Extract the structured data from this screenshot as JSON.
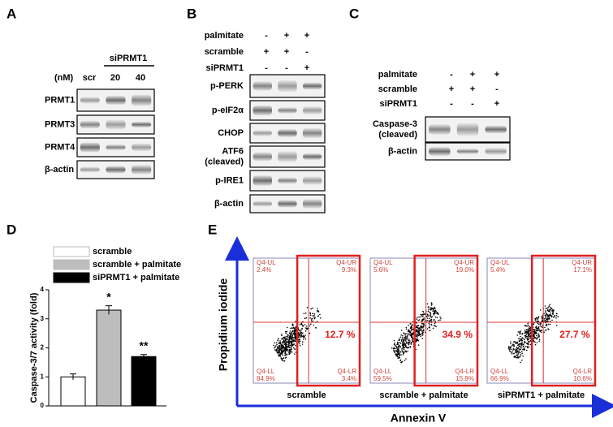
{
  "panels": {
    "A": {
      "letter": "A",
      "units": "(nM)",
      "group": "siPRMT1",
      "lanes": [
        "scr",
        "20",
        "40"
      ],
      "rows": [
        "PRMT1",
        "PRMT3",
        "PRMT4",
        "β-actin"
      ]
    },
    "B": {
      "letter": "B",
      "conditions": [
        {
          "name": "palmitate",
          "signs": [
            "-",
            "+",
            "+"
          ]
        },
        {
          "name": "scramble",
          "signs": [
            "+",
            "+",
            "-"
          ]
        },
        {
          "name": "siPRMT1",
          "signs": [
            "-",
            "-",
            "+"
          ]
        }
      ],
      "rows": [
        [
          "p-PERK"
        ],
        [
          "p-eIF2α"
        ],
        [
          "CHOP"
        ],
        [
          "ATF6",
          "(cleaved)"
        ],
        [
          "p-IRE1"
        ],
        [
          "β-actin"
        ]
      ]
    },
    "C": {
      "letter": "C",
      "conditions": [
        {
          "name": "palmitate",
          "signs": [
            "-",
            "+",
            "+"
          ]
        },
        {
          "name": "scramble",
          "signs": [
            "+",
            "+",
            "-"
          ]
        },
        {
          "name": "siPRMT1",
          "signs": [
            "-",
            "-",
            "+"
          ]
        }
      ],
      "rows": [
        [
          "Caspase-3",
          "(cleaved)"
        ],
        [
          "β-actin"
        ]
      ]
    },
    "E": {
      "letter": "E",
      "y_label": "Propidium iodide",
      "x_label": "Annexin V",
      "plots": [
        {
          "name": "scramble",
          "ul": [
            "Q4-UL",
            "2.4%"
          ],
          "ur": [
            "Q4-UR",
            "9.3%"
          ],
          "ll": [
            "Q4-LL",
            "84.9%"
          ],
          "lr": [
            "Q4-LR",
            "3.4%"
          ],
          "highlight": "12.7 %"
        },
        {
          "name": "scramble + palmitate",
          "ul": [
            "Q4-UL",
            "5.6%"
          ],
          "ur": [
            "Q4-UR",
            "19.0%"
          ],
          "ll": [
            "Q4-LL",
            "59.5%"
          ],
          "lr": [
            "Q4-LR",
            "15.9%"
          ],
          "highlight": "34.9 %"
        },
        {
          "name": "siPRMT1 + palmitate",
          "ul": [
            "Q4-UL",
            "5.4%"
          ],
          "ur": [
            "Q4-UR",
            "17.1%"
          ],
          "ll": [
            "Q4-LL",
            "66.9%"
          ],
          "lr": [
            "Q4-LR",
            "10.6%"
          ],
          "highlight": "27.7 %"
        }
      ]
    }
  },
  "chart_data": {
    "type": "bar",
    "panel": "D",
    "y_label": "Caspase-3/7 activity (fold)",
    "ylim": [
      0,
      4
    ],
    "yticks": [
      0,
      1,
      2,
      3,
      4
    ],
    "series": [
      {
        "name": "scramble",
        "color": "#ffffff",
        "values": [
          1.0
        ],
        "errors": [
          0.1
        ]
      },
      {
        "name": "scramble + palmitate",
        "color": "#bdbdbd",
        "values": [
          3.3
        ],
        "errors": [
          0.15
        ],
        "significance": "*"
      },
      {
        "name": "siPRMT1 + palmitate",
        "color": "#000000",
        "values": [
          1.7
        ],
        "errors": [
          0.07
        ],
        "significance": "**"
      }
    ]
  }
}
